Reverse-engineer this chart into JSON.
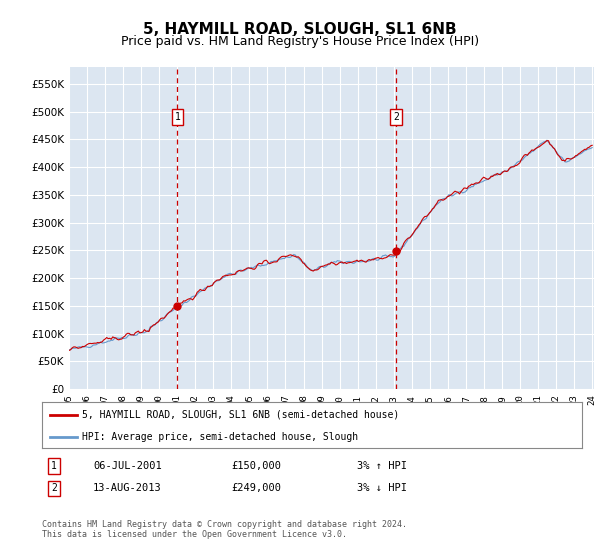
{
  "title": "5, HAYMILL ROAD, SLOUGH, SL1 6NB",
  "subtitle": "Price paid vs. HM Land Registry's House Price Index (HPI)",
  "ytick_values": [
    0,
    50000,
    100000,
    150000,
    200000,
    250000,
    300000,
    350000,
    400000,
    450000,
    500000,
    550000
  ],
  "ylim": [
    0,
    580000
  ],
  "xlim_start": 1995.5,
  "xlim_end": 2024.6,
  "sale1_x": 2001.51,
  "sale1_y": 150000,
  "sale2_x": 2013.62,
  "sale2_y": 249000,
  "legend_line1": "5, HAYMILL ROAD, SLOUGH, SL1 6NB (semi-detached house)",
  "legend_line2": "HPI: Average price, semi-detached house, Slough",
  "table_row1": [
    "1",
    "06-JUL-2001",
    "£150,000",
    "3% ↑ HPI"
  ],
  "table_row2": [
    "2",
    "13-AUG-2013",
    "£249,000",
    "3% ↓ HPI"
  ],
  "footer": "Contains HM Land Registry data © Crown copyright and database right 2024.\nThis data is licensed under the Open Government Licence v3.0.",
  "plot_bg": "#dce6f1",
  "hpi_line_color": "#6699cc",
  "price_line_color": "#cc0000",
  "dashed_line_color": "#cc0000",
  "grid_color": "#ffffff",
  "title_fontsize": 11,
  "subtitle_fontsize": 9,
  "xtick_labels": [
    "95",
    "96",
    "97",
    "98",
    "99",
    "00",
    "01",
    "02",
    "03",
    "04",
    "05",
    "06",
    "07",
    "08",
    "09",
    "10",
    "11",
    "12",
    "13",
    "14",
    "15",
    "16",
    "17",
    "18",
    "19",
    "20",
    "21",
    "22",
    "23",
    "24"
  ]
}
